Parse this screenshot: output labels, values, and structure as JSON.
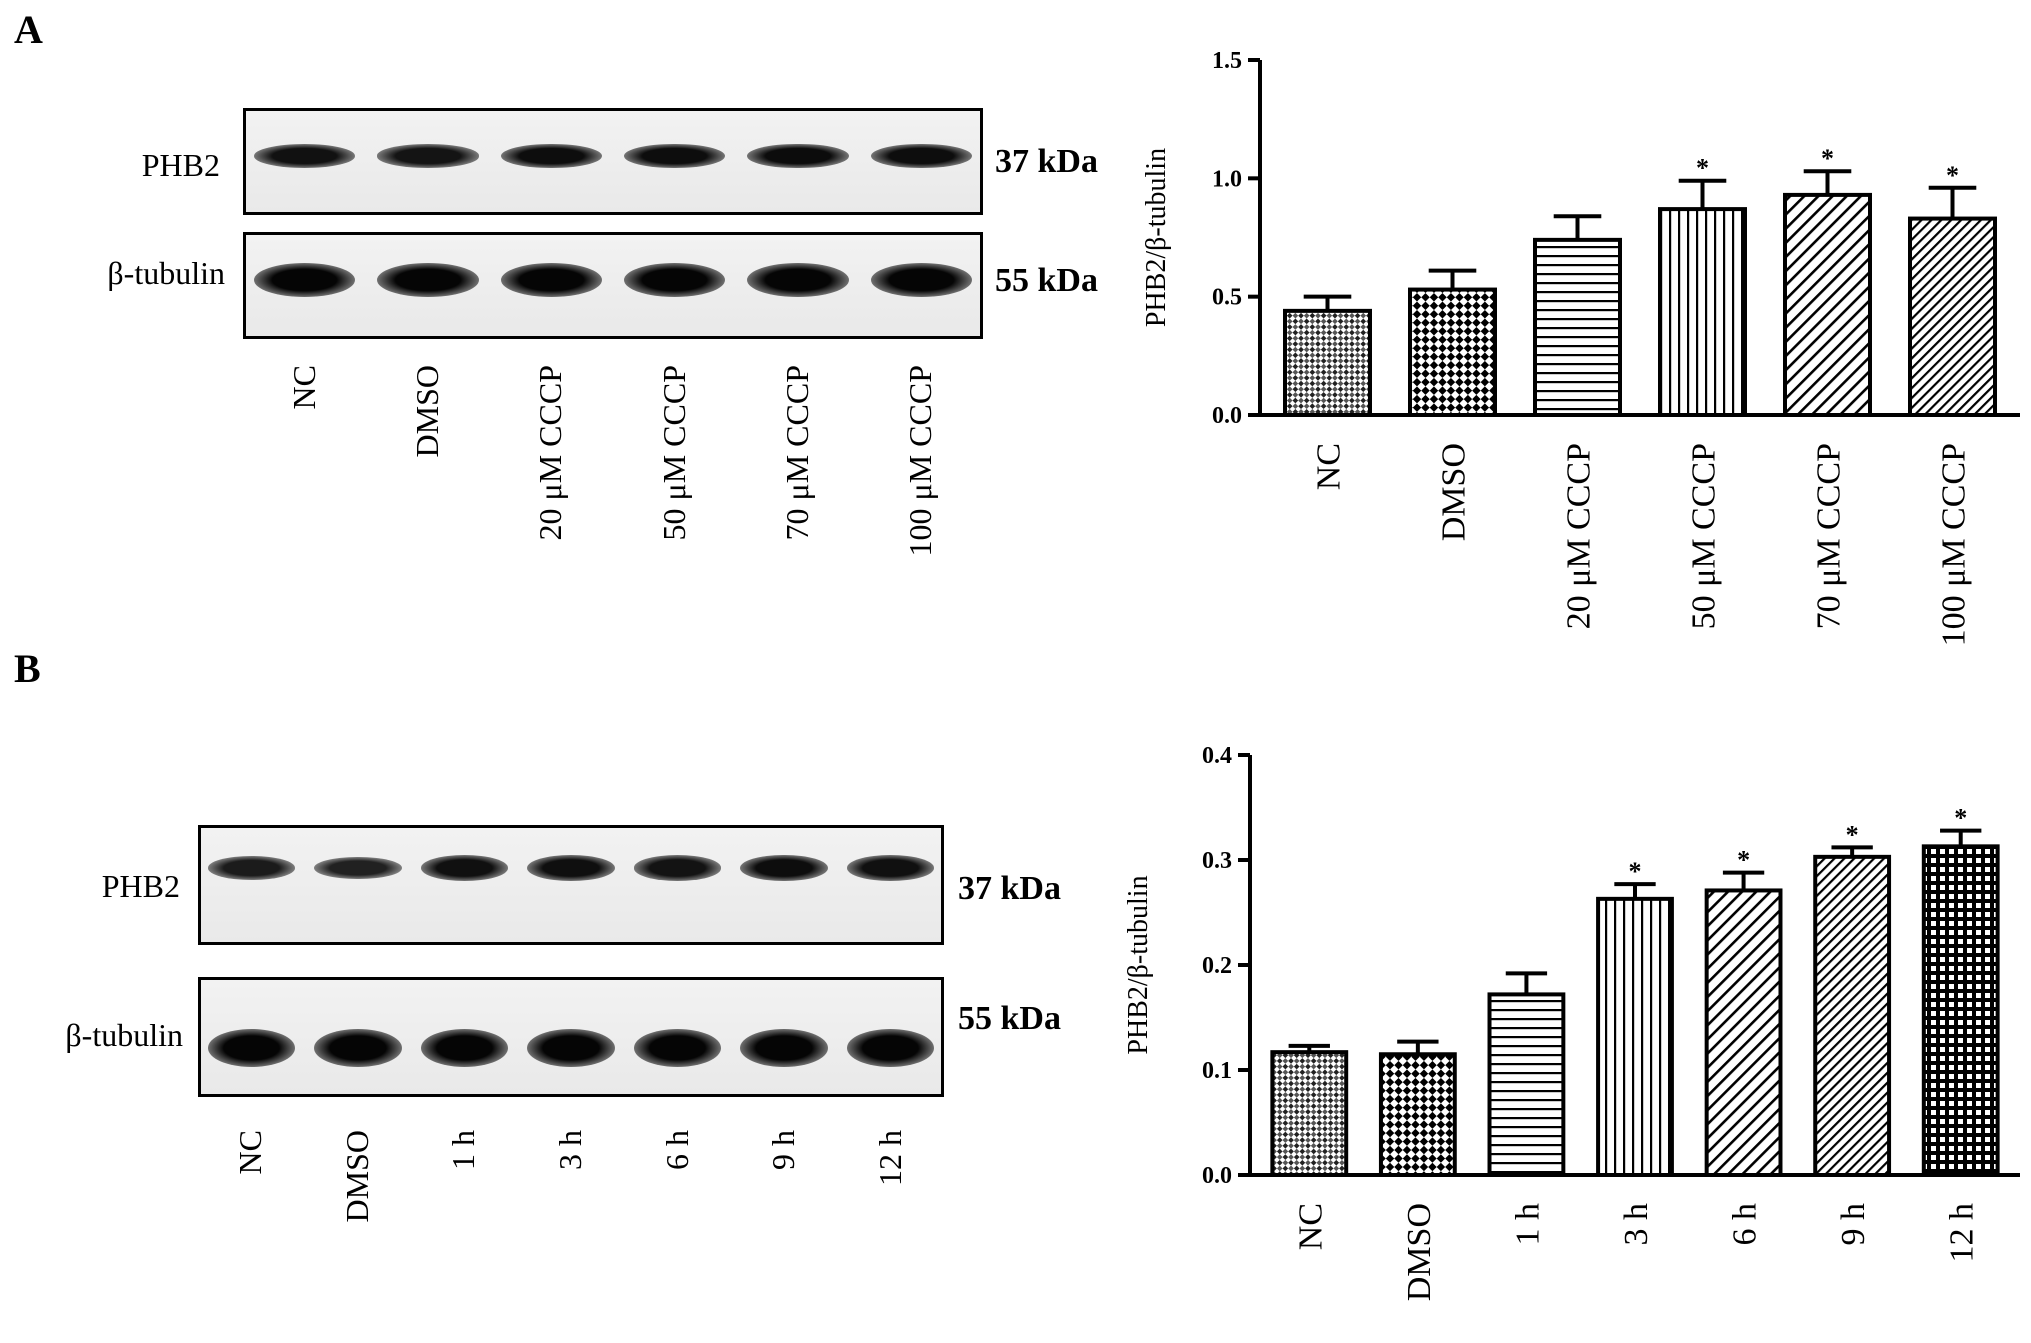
{
  "panels": [
    {
      "label": "A",
      "blot": {
        "lanes": [
          "NC",
          "DMSO",
          "20 μM CCCP",
          "50 μM CCCP",
          "70 μM CCCP",
          "100 μM CCCP"
        ],
        "rows": [
          {
            "protein": "PHB2",
            "kda": "37 kDa",
            "intensity": [
              0.78,
              0.72,
              0.85,
              0.86,
              0.88,
              0.86
            ]
          },
          {
            "protein": "β-tubulin",
            "kda": "55 kDa",
            "intensity": [
              1,
              1,
              1,
              1,
              1,
              1
            ]
          }
        ]
      }
    },
    {
      "label": "B",
      "blot": {
        "lanes": [
          "NC",
          "DMSO",
          "1 h",
          "3 h",
          "6 h",
          "9 h",
          "12 h"
        ],
        "rows": [
          {
            "protein": "PHB2",
            "kda": "37 kDa",
            "intensity": [
              0.6,
              0.5,
              0.8,
              0.82,
              0.75,
              0.85,
              0.8
            ]
          },
          {
            "protein": "β-tubulin",
            "kda": "55 kDa",
            "intensity": [
              1,
              1,
              1,
              1,
              1,
              1,
              1
            ]
          }
        ]
      }
    }
  ],
  "chart_data": [
    {
      "type": "bar",
      "categories": [
        "NC",
        "DMSO",
        "20 μM CCCP",
        "50 μM CCCP",
        "70 μM CCCP",
        "100 μM CCCP"
      ],
      "values": [
        0.44,
        0.53,
        0.74,
        0.87,
        0.93,
        0.83
      ],
      "errors": [
        0.06,
        0.08,
        0.1,
        0.12,
        0.1,
        0.13
      ],
      "significant": [
        false,
        false,
        false,
        true,
        true,
        true
      ],
      "marker": "*",
      "patterns": [
        "crosshatch",
        "checker",
        "hlines",
        "vlines",
        "diag-wide",
        "diag-fine"
      ],
      "ylabel": "PHB2/β-tubulin",
      "ylim": [
        0,
        1.5
      ],
      "yticks": [
        "0.0",
        "0.5",
        "1.0",
        "1.5"
      ],
      "ytick_values": [
        0,
        0.5,
        1.0,
        1.5
      ]
    },
    {
      "type": "bar",
      "categories": [
        "NC",
        "DMSO",
        "1 h",
        "3 h",
        "6 h",
        "9 h",
        "12 h"
      ],
      "values": [
        0.117,
        0.115,
        0.172,
        0.263,
        0.271,
        0.303,
        0.313
      ],
      "errors": [
        0.006,
        0.012,
        0.02,
        0.014,
        0.017,
        0.009,
        0.015
      ],
      "significant": [
        false,
        false,
        false,
        true,
        true,
        true,
        true
      ],
      "marker": "*",
      "patterns": [
        "crosshatch",
        "checker",
        "hlines",
        "vlines",
        "diag-wide",
        "diag-fine",
        "grid"
      ],
      "ylabel": "PHB2/β-tubulin",
      "ylim": [
        0,
        0.4
      ],
      "yticks": [
        "0.0",
        "0.1",
        "0.2",
        "0.3",
        "0.4"
      ],
      "ytick_values": [
        0,
        0.1,
        0.2,
        0.3,
        0.4
      ]
    }
  ]
}
